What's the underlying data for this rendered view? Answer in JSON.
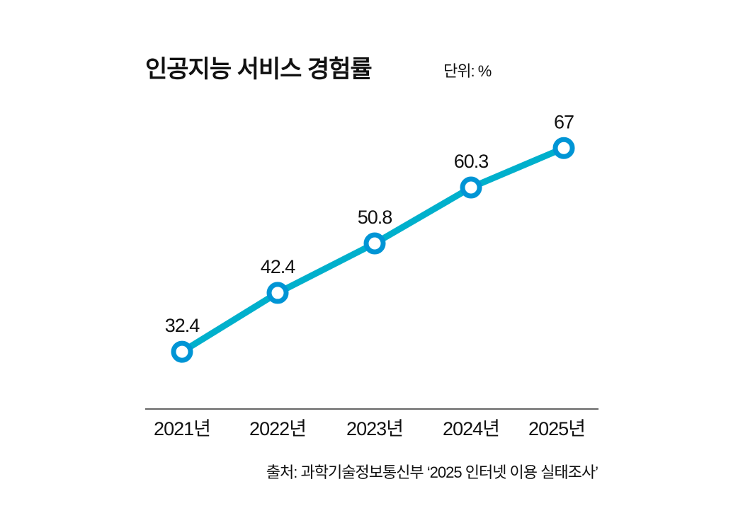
{
  "chart_data": {
    "type": "line",
    "title": "인공지능 서비스 경험률",
    "unit_label": "단위: %",
    "categories": [
      "2021년",
      "2022년",
      "2023년",
      "2024년",
      "2025년"
    ],
    "values": [
      32.4,
      42.4,
      50.8,
      60.3,
      67
    ],
    "data_labels": [
      "32.4",
      "42.4",
      "50.8",
      "60.3",
      "67"
    ],
    "grid": false,
    "legend": "none",
    "colors": {
      "line": "#00b0cc",
      "marker": "#0095d5"
    },
    "source": "출처: 과학기술정보통신부 ‘2025 인터넷 이용 실태조사’"
  }
}
